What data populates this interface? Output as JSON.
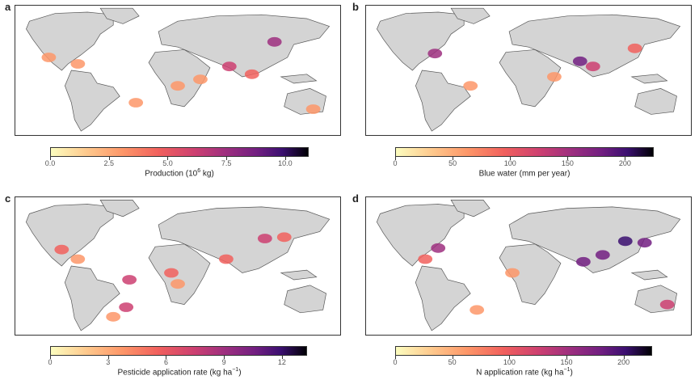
{
  "panels": [
    {
      "letter": "a",
      "title": "Production (10",
      "title_sup": "6",
      "title_end": " kg)",
      "ticks": [
        "0.0",
        "2.5",
        "5.0",
        "7.5",
        "10.0"
      ],
      "tick_values": [
        0,
        2.5,
        5,
        7.5,
        10
      ],
      "max": 11,
      "hotspots": [
        [
          0.1,
          0.4,
          0.3
        ],
        [
          0.19,
          0.45,
          0.2
        ],
        [
          0.37,
          0.75,
          0.2
        ],
        [
          0.5,
          0.62,
          0.25
        ],
        [
          0.57,
          0.57,
          0.2
        ],
        [
          0.66,
          0.47,
          0.5
        ],
        [
          0.73,
          0.53,
          0.4
        ],
        [
          0.8,
          0.28,
          0.6
        ],
        [
          0.92,
          0.8,
          0.2
        ]
      ]
    },
    {
      "letter": "b",
      "title": "Blue water (mm per year)",
      "title_sup": "",
      "title_end": "",
      "ticks": [
        "0",
        "50",
        "100",
        "150",
        "200"
      ],
      "tick_values": [
        0,
        50,
        100,
        150,
        200
      ],
      "max": 225,
      "hotspots": [
        [
          0.21,
          0.37,
          0.6
        ],
        [
          0.66,
          0.43,
          0.7
        ],
        [
          0.7,
          0.47,
          0.5
        ],
        [
          0.83,
          0.33,
          0.4
        ],
        [
          0.32,
          0.62,
          0.2
        ],
        [
          0.58,
          0.55,
          0.2
        ]
      ]
    },
    {
      "letter": "c",
      "title": "Pesticide application rate (kg ha",
      "title_sup": "−1",
      "title_end": ")",
      "ticks": [
        "0",
        "3",
        "6",
        "9",
        "12"
      ],
      "tick_values": [
        0,
        3,
        6,
        9,
        12
      ],
      "max": 13.3,
      "hotspots": [
        [
          0.14,
          0.38,
          0.4
        ],
        [
          0.19,
          0.45,
          0.3
        ],
        [
          0.35,
          0.6,
          0.5
        ],
        [
          0.48,
          0.55,
          0.4
        ],
        [
          0.5,
          0.63,
          0.3
        ],
        [
          0.65,
          0.45,
          0.4
        ],
        [
          0.77,
          0.3,
          0.5
        ],
        [
          0.83,
          0.29,
          0.4
        ],
        [
          0.34,
          0.8,
          0.5
        ],
        [
          0.3,
          0.87,
          0.3
        ]
      ]
    },
    {
      "letter": "d",
      "title": "N application rate (kg ha",
      "title_sup": "−1",
      "title_end": ")",
      "ticks": [
        "0",
        "50",
        "100",
        "150",
        "200"
      ],
      "tick_values": [
        0,
        50,
        100,
        150,
        200
      ],
      "max": 225,
      "hotspots": [
        [
          0.22,
          0.37,
          0.6
        ],
        [
          0.18,
          0.45,
          0.4
        ],
        [
          0.67,
          0.47,
          0.7
        ],
        [
          0.73,
          0.42,
          0.8
        ],
        [
          0.8,
          0.32,
          0.9
        ],
        [
          0.86,
          0.33,
          0.8
        ],
        [
          0.93,
          0.78,
          0.5
        ],
        [
          0.34,
          0.82,
          0.3
        ],
        [
          0.45,
          0.55,
          0.2
        ]
      ]
    }
  ]
}
